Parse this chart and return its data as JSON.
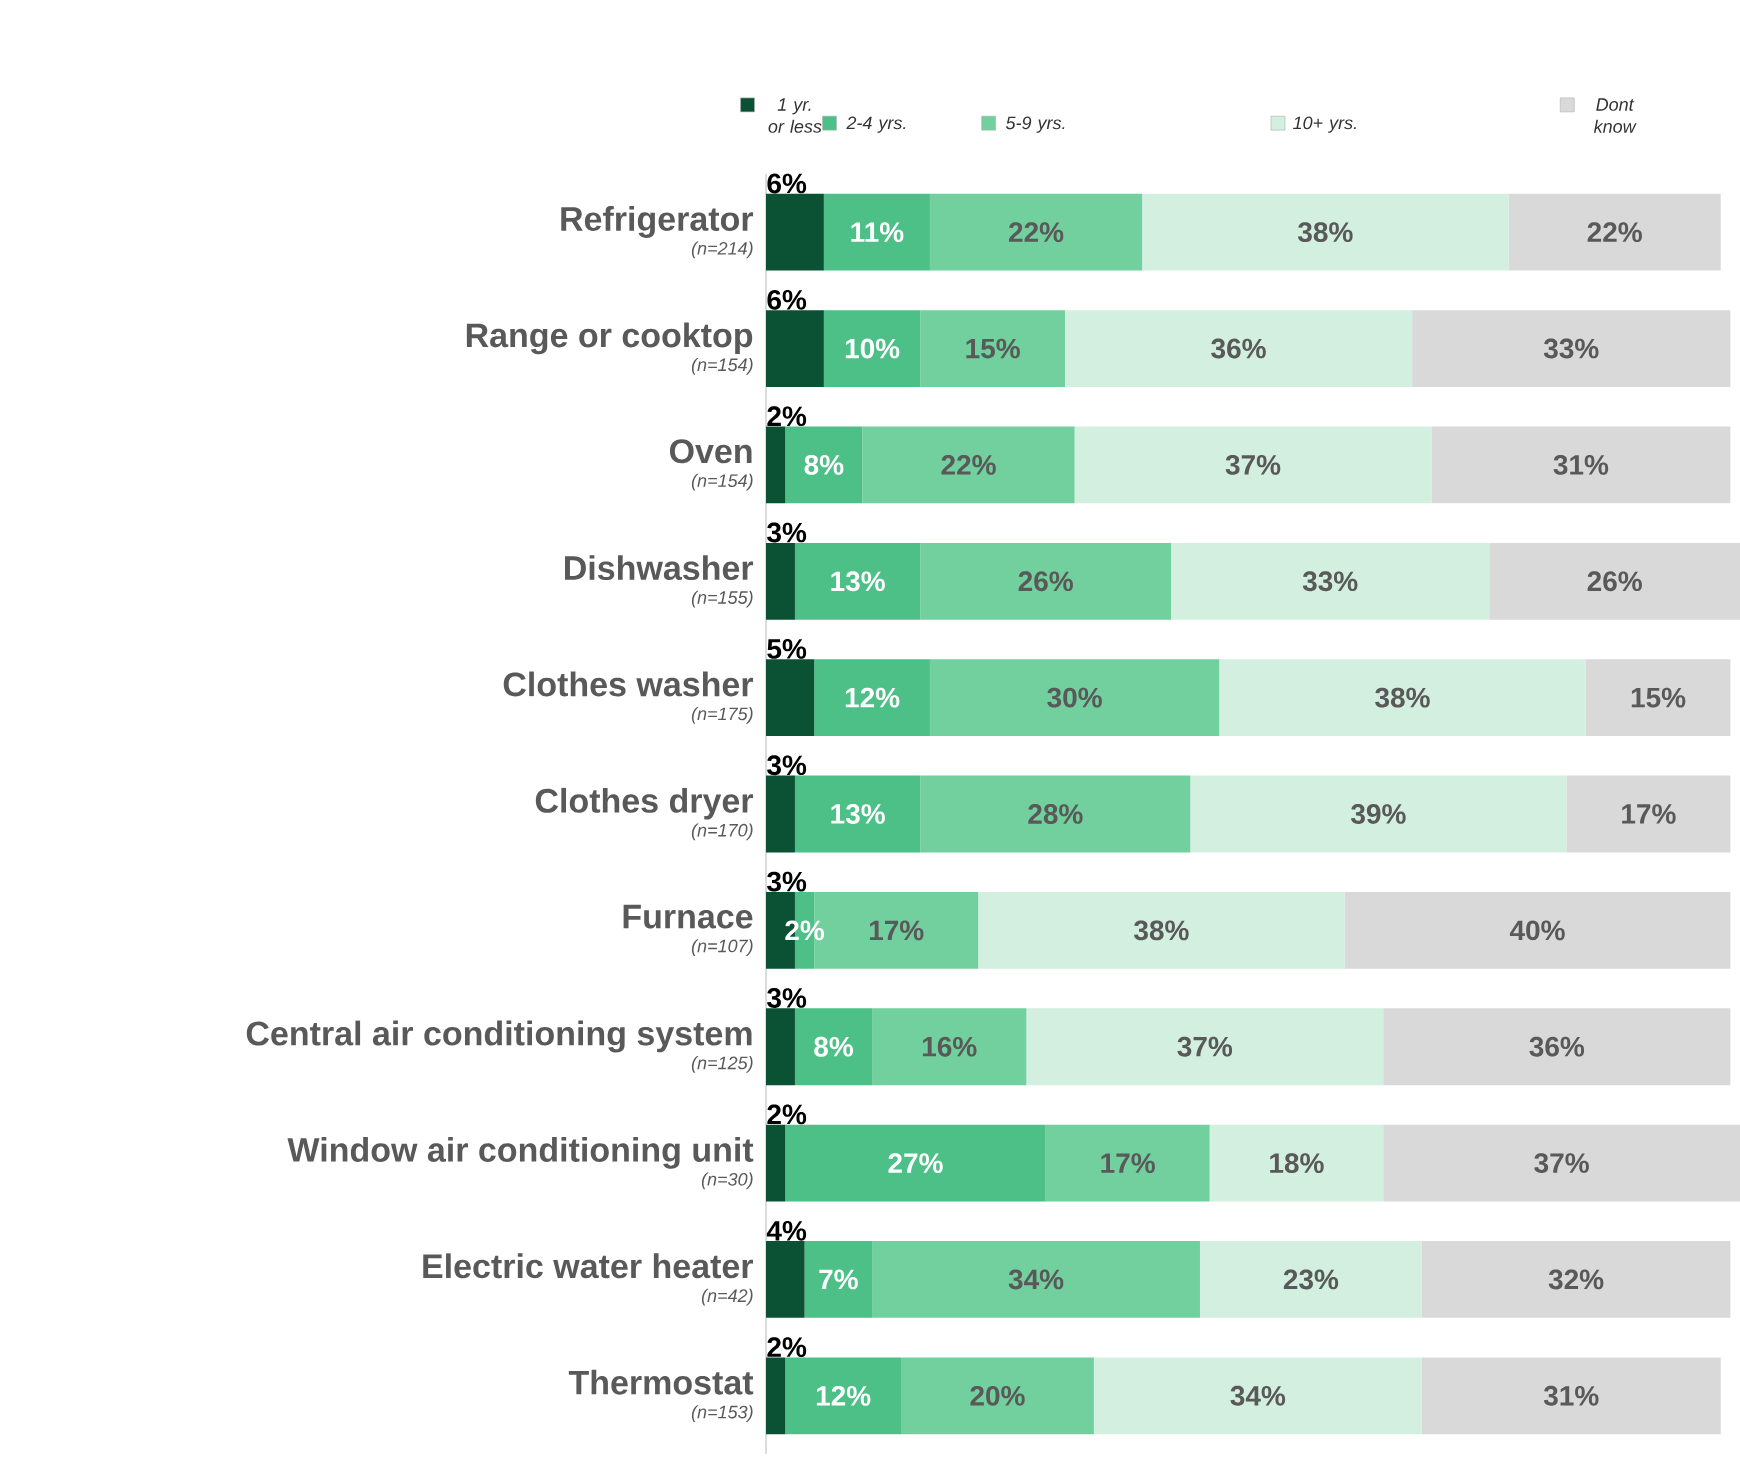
{
  "chart_data": {
    "type": "bar",
    "orientation": "horizontal",
    "stacked": true,
    "legend": "top",
    "categories": [
      "Refrigerator",
      "Range or cooktop",
      "Oven",
      "Dishwasher",
      "Clothes washer",
      "Clothes dryer",
      "Furnace",
      "Central air conditioning system",
      "Window air conditioning unit",
      "Electric water heater",
      "Thermostat"
    ],
    "annotations": [
      "(n=214)",
      "(n=154)",
      "(n=154)",
      "(n=155)",
      "(n=175)",
      "(n=170)",
      "(n=107)",
      "(n=125)",
      "(n=30)",
      "(n=42)",
      "(n=153)"
    ],
    "series": [
      {
        "name": "1 yr. or less",
        "color": "#0b5134",
        "values": [
          6,
          6,
          2,
          3,
          5,
          3,
          3,
          3,
          2,
          4,
          2
        ],
        "value_labels": [
          "6%",
          "6%",
          "2%",
          "3%",
          "5%",
          "3%",
          "3%",
          "3%",
          "2%",
          "4%",
          "2%"
        ]
      },
      {
        "name": "2-4 yrs.",
        "color": "#4cc087",
        "values": [
          11,
          10,
          8,
          13,
          12,
          13,
          2,
          8,
          27,
          7,
          12
        ],
        "value_labels": [
          "11%",
          "10%",
          "8%",
          "13%",
          "12%",
          "13%",
          "2%",
          "8%",
          "27%",
          "7%",
          "12%"
        ]
      },
      {
        "name": "5-9 yrs.",
        "color": "#72cf9e",
        "values": [
          22,
          15,
          22,
          26,
          30,
          28,
          17,
          16,
          17,
          34,
          20
        ],
        "value_labels": [
          "22%",
          "15%",
          "22%",
          "26%",
          "30%",
          "28%",
          "17%",
          "16%",
          "17%",
          "34%",
          "20%"
        ]
      },
      {
        "name": "10+ yrs.",
        "color": "#d2efdf",
        "values": [
          38,
          36,
          37,
          33,
          38,
          39,
          38,
          37,
          18,
          23,
          34
        ],
        "value_labels": [
          "38%",
          "36%",
          "37%",
          "33%",
          "38%",
          "39%",
          "38%",
          "37%",
          "18%",
          "23%",
          "34%"
        ]
      },
      {
        "name": "Dont know",
        "color": "#d9d9d9",
        "values": [
          22,
          33,
          31,
          26,
          15,
          17,
          40,
          36,
          37,
          32,
          31
        ],
        "value_labels": [
          "22%",
          "33%",
          "31%",
          "26%",
          "15%",
          "17%",
          "40%",
          "36%",
          "37%",
          "32%",
          "31%"
        ]
      }
    ]
  }
}
